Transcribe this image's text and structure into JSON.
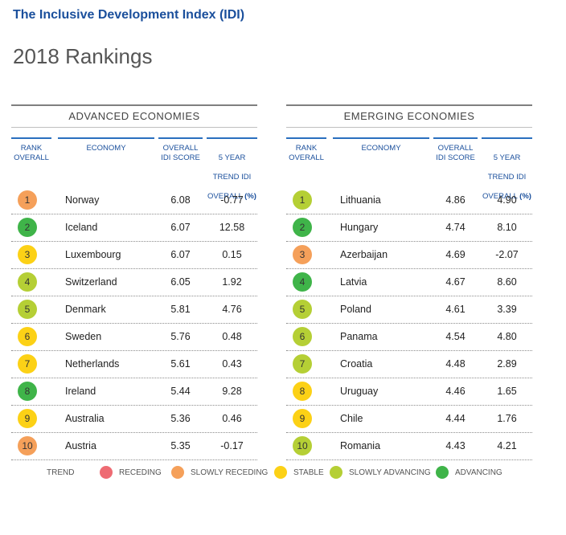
{
  "header": {
    "title": "The Inclusive Development Index (IDI)",
    "subtitle": "2018 Rankings"
  },
  "columns": {
    "rank": "RANK\nOVERALL",
    "economy": "ECONOMY",
    "score": "OVERALL\nIDI SCORE",
    "trend_line1": "5 YEAR",
    "trend_line2": "TREND IDI",
    "trend_line3": "OVERALL",
    "trend_unit": "(%)"
  },
  "trend_colors": {
    "receding": "#ee6b73",
    "slowly_receding": "#f5a05a",
    "stable": "#fcd116",
    "slowly_advancing": "#b5cf35",
    "advancing": "#3fb449"
  },
  "advanced": {
    "title": "ADVANCED ECONOMIES",
    "rows": [
      {
        "rank": "1",
        "economy": "Norway",
        "score": "6.08",
        "trend": "-0.77",
        "status": "slowly_receding"
      },
      {
        "rank": "2",
        "economy": "Iceland",
        "score": "6.07",
        "trend": "12.58",
        "status": "advancing"
      },
      {
        "rank": "3",
        "economy": "Luxembourg",
        "score": "6.07",
        "trend": "0.15",
        "status": "stable"
      },
      {
        "rank": "4",
        "economy": "Switzerland",
        "score": "6.05",
        "trend": "1.92",
        "status": "slowly_advancing"
      },
      {
        "rank": "5",
        "economy": "Denmark",
        "score": "5.81",
        "trend": "4.76",
        "status": "slowly_advancing"
      },
      {
        "rank": "6",
        "economy": "Sweden",
        "score": "5.76",
        "trend": "0.48",
        "status": "stable"
      },
      {
        "rank": "7",
        "economy": "Netherlands",
        "score": "5.61",
        "trend": "0.43",
        "status": "stable"
      },
      {
        "rank": "8",
        "economy": "Ireland",
        "score": "5.44",
        "trend": "9.28",
        "status": "advancing"
      },
      {
        "rank": "9",
        "economy": "Australia",
        "score": "5.36",
        "trend": "0.46",
        "status": "stable"
      },
      {
        "rank": "10",
        "economy": "Austria",
        "score": "5.35",
        "trend": "-0.17",
        "status": "slowly_receding"
      }
    ]
  },
  "emerging": {
    "title": "EMERGING ECONOMIES",
    "rows": [
      {
        "rank": "1",
        "economy": "Lithuania",
        "score": "4.86",
        "trend": "4.90",
        "status": "slowly_advancing"
      },
      {
        "rank": "2",
        "economy": "Hungary",
        "score": "4.74",
        "trend": "8.10",
        "status": "advancing"
      },
      {
        "rank": "3",
        "economy": "Azerbaijan",
        "score": "4.69",
        "trend": "-2.07",
        "status": "slowly_receding"
      },
      {
        "rank": "4",
        "economy": "Latvia",
        "score": "4.67",
        "trend": "8.60",
        "status": "advancing"
      },
      {
        "rank": "5",
        "economy": "Poland",
        "score": "4.61",
        "trend": "3.39",
        "status": "slowly_advancing"
      },
      {
        "rank": "6",
        "economy": "Panama",
        "score": "4.54",
        "trend": "4.80",
        "status": "slowly_advancing"
      },
      {
        "rank": "7",
        "economy": "Croatia",
        "score": "4.48",
        "trend": "2.89",
        "status": "slowly_advancing"
      },
      {
        "rank": "8",
        "economy": "Uruguay",
        "score": "4.46",
        "trend": "1.65",
        "status": "stable"
      },
      {
        "rank": "9",
        "economy": "Chile",
        "score": "4.44",
        "trend": "1.76",
        "status": "stable"
      },
      {
        "rank": "10",
        "economy": "Romania",
        "score": "4.43",
        "trend": "4.21",
        "status": "slowly_advancing"
      }
    ]
  },
  "legend": {
    "label": "TREND",
    "items": [
      {
        "key": "receding",
        "label": "RECEDING"
      },
      {
        "key": "slowly_receding",
        "label": "SLOWLY RECEDING"
      },
      {
        "key": "stable",
        "label": "STABLE"
      },
      {
        "key": "slowly_advancing",
        "label": "SLOWLY ADVANCING"
      },
      {
        "key": "advancing",
        "label": "ADVANCING"
      }
    ]
  }
}
